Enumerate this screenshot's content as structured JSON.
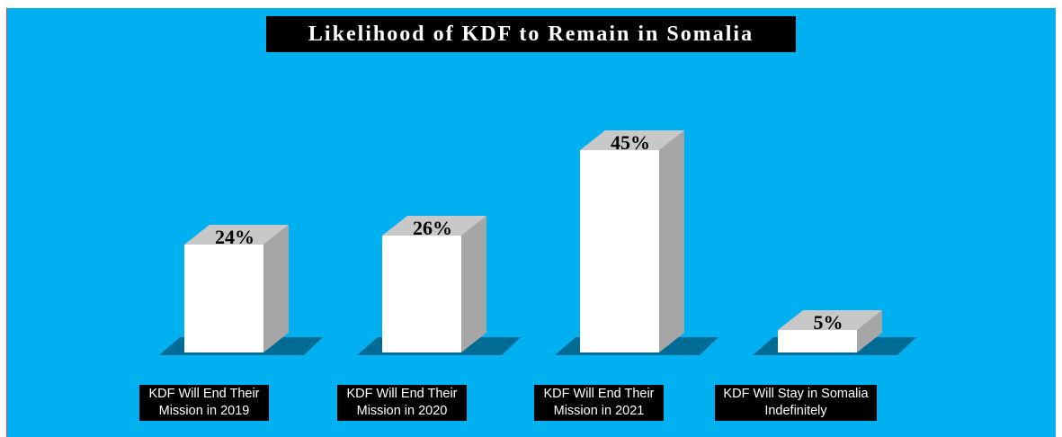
{
  "chart_data": {
    "type": "bar",
    "title": "Likelihood of KDF to Remain in Somalia",
    "categories": [
      "KDF Will End Their\nMission in 2019",
      "KDF Will End Their\nMission in 2020",
      "KDF Will End Their\nMission in 2021",
      "KDF Will Stay in Somalia\nIndefinitely"
    ],
    "values": [
      24,
      26,
      45,
      5
    ],
    "data_labels": [
      "24%",
      "26%",
      "45%",
      "5%"
    ],
    "unit": "%",
    "ylim": [
      0,
      50
    ],
    "grid": false,
    "legend": "none",
    "colors": {
      "background": "#00b0f0",
      "bar_front": "#ffffff",
      "bar_top": "#c8c8c8",
      "bar_side": "#a6a6a6",
      "shadow": "#005f85",
      "label_bg": "#000000",
      "label_text": "#ffffff"
    }
  }
}
